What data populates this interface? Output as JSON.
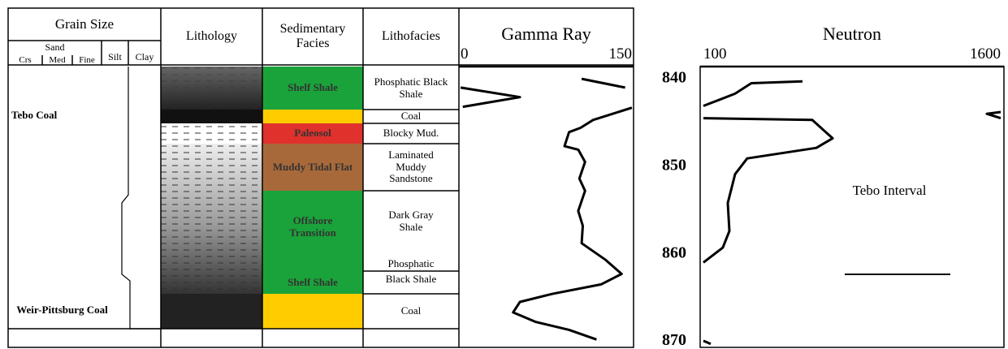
{
  "headers": {
    "grain_size": "Grain Size",
    "sand": "Sand",
    "crs": "Crs",
    "med": "Med",
    "fine": "Fine",
    "silt": "Silt",
    "clay": "Clay",
    "lithology": "Lithology",
    "facies": "Sedimentary Facies",
    "lithofacies": "Lithofacies"
  },
  "coal_labels": [
    "Tebo Coal",
    "Weir-Pittsburg Coal"
  ],
  "facies": [
    "Shelf Shale",
    "Paleosol",
    "Muddy Tidal Flat",
    "Offshore Transition",
    "Shelf Shale"
  ],
  "lithofacies": [
    "Phosphatic Black Shale",
    "Coal",
    "Blocky Mud.",
    "Laminated Muddy Sandstone",
    "Dark Gray Shale",
    "Phosphatic",
    "Black Shale",
    "Coal"
  ],
  "depth": {
    "ylim": [
      838.6,
      870.7
    ],
    "yticks": [
      840,
      850,
      860,
      870
    ]
  },
  "gamma_ray": {
    "title": "Gamma Ray",
    "xlim": [
      0,
      150
    ],
    "xticks": [
      0,
      150
    ],
    "depths": [
      840.0,
      841.0,
      null,
      841.0,
      842.1,
      843.2,
      null,
      843.3,
      844.7,
      845.6,
      846.1,
      847.7,
      848.1,
      849.5,
      851.4,
      852.8,
      855.1,
      856.8,
      858.8,
      860.7,
      862.3,
      863.5,
      864.6,
      865.5,
      866.7,
      867.8,
      868.7,
      869.8
    ],
    "values": [
      106,
      144,
      null,
      0,
      52,
      2,
      null,
      150,
      116,
      105,
      95,
      91,
      103,
      109,
      104,
      109,
      103,
      107,
      106,
      127,
      141,
      123,
      80,
      52,
      46,
      66,
      95,
      119
    ]
  },
  "neutron": {
    "title": "Neutron",
    "xlim": [
      100,
      1600
    ],
    "xticks": [
      100,
      1600
    ],
    "depths": [
      840.3,
      840.5,
      841.7,
      843.1,
      null,
      844.5,
      844.7,
      846.8,
      847.9,
      849.1,
      850.9,
      854.2,
      857.4,
      859.3,
      861.0,
      null,
      843.8,
      844.0,
      844.5,
      null,
      869.95,
      870.3
    ],
    "values": [
      600,
      342,
      260,
      100,
      null,
      100,
      649,
      752,
      670,
      321,
      260,
      223,
      231,
      198,
      100,
      null,
      1600,
      1530,
      1600,
      null,
      100,
      137
    ]
  },
  "annotation": "Tebo Interval"
}
